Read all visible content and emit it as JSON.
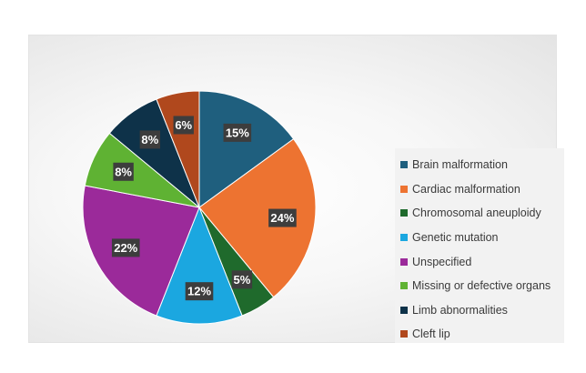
{
  "chart_data": {
    "type": "pie",
    "title": "",
    "legend_position": "right",
    "data_label_format": "percent",
    "slices": [
      {
        "label": "Brain malformation",
        "value": 15,
        "display": "15%",
        "color": "#1f5f7e"
      },
      {
        "label": "Cardiac malformation",
        "value": 24,
        "display": "24%",
        "color": "#ed7331"
      },
      {
        "label": "Chromosomal aneuploidy",
        "value": 5,
        "display": "5%",
        "color": "#1f6a2c"
      },
      {
        "label": "Genetic mutation",
        "value": 12,
        "display": "12%",
        "color": "#1ba7e0"
      },
      {
        "label": "Unspecified",
        "value": 22,
        "display": "22%",
        "color": "#9b2a9a"
      },
      {
        "label": "Missing or defective organs",
        "value": 8,
        "display": "8%",
        "color": "#5fb233"
      },
      {
        "label": "Limb abnormalities",
        "value": 8,
        "display": "8%",
        "color": "#0e3249"
      },
      {
        "label": "Cleft lip",
        "value": 6,
        "display": "6%",
        "color": "#b0481d"
      }
    ]
  }
}
